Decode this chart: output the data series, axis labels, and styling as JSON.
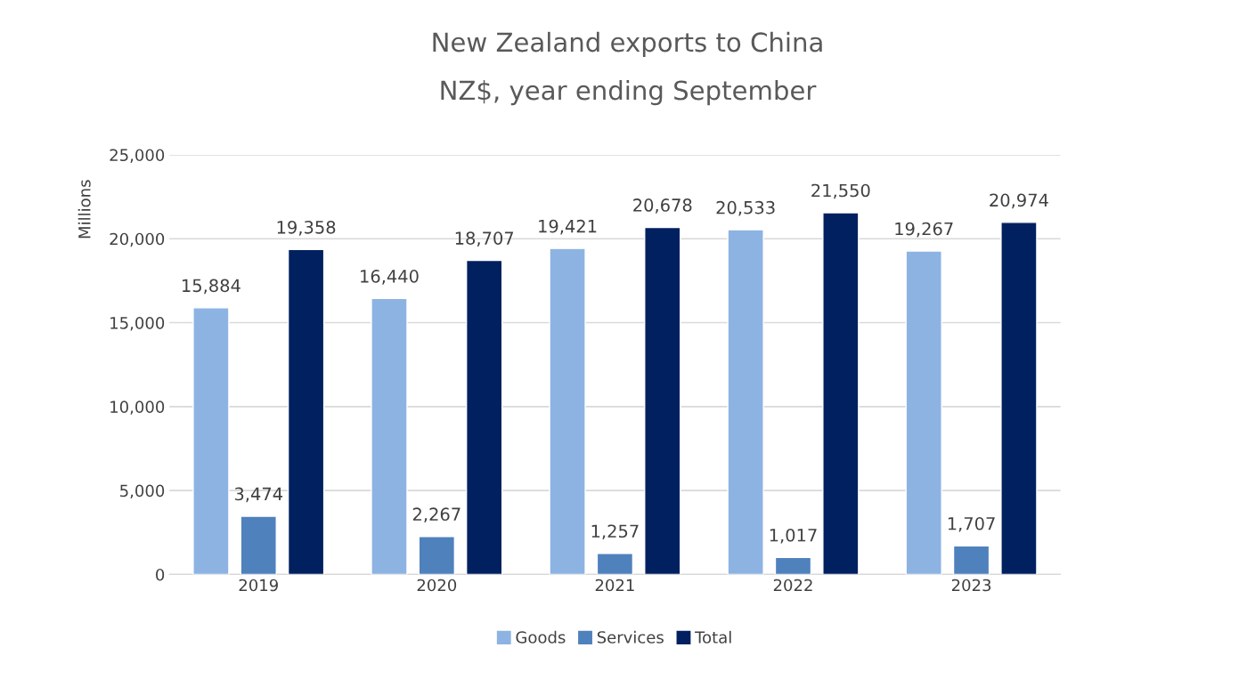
{
  "chart_data": {
    "type": "bar",
    "title": "New Zealand exports to China",
    "subtitle": "NZ$, year ending September",
    "ylabel": "Millions",
    "categories": [
      "2019",
      "2020",
      "2021",
      "2022",
      "2023"
    ],
    "series": [
      {
        "name": "Goods",
        "color": "#8db3e2",
        "values": [
          15884,
          16440,
          19421,
          20533,
          19267
        ],
        "value_labels": [
          "15,884",
          "16,440",
          "19,421",
          "20,533",
          "19,267"
        ]
      },
      {
        "name": "Services",
        "color": "#4f81bd",
        "values": [
          3474,
          2267,
          1257,
          1017,
          1707
        ],
        "value_labels": [
          "3,474",
          "2,267",
          "1,257",
          "1,017",
          "1,707"
        ]
      },
      {
        "name": "Total",
        "color": "#002060",
        "values": [
          19358,
          18707,
          20678,
          21550,
          20974
        ],
        "value_labels": [
          "19,358",
          "18,707",
          "20,678",
          "21,550",
          "20,974"
        ]
      }
    ],
    "ylim": [
      0,
      25000
    ],
    "yticks": [
      {
        "value": 0,
        "label": "0"
      },
      {
        "value": 5000,
        "label": "5,000"
      },
      {
        "value": 10000,
        "label": "10,000"
      },
      {
        "value": 15000,
        "label": "15,000"
      },
      {
        "value": 20000,
        "label": "20,000"
      },
      {
        "value": 25000,
        "label": "25,000"
      }
    ],
    "grid": "y",
    "legend": "bottom"
  }
}
